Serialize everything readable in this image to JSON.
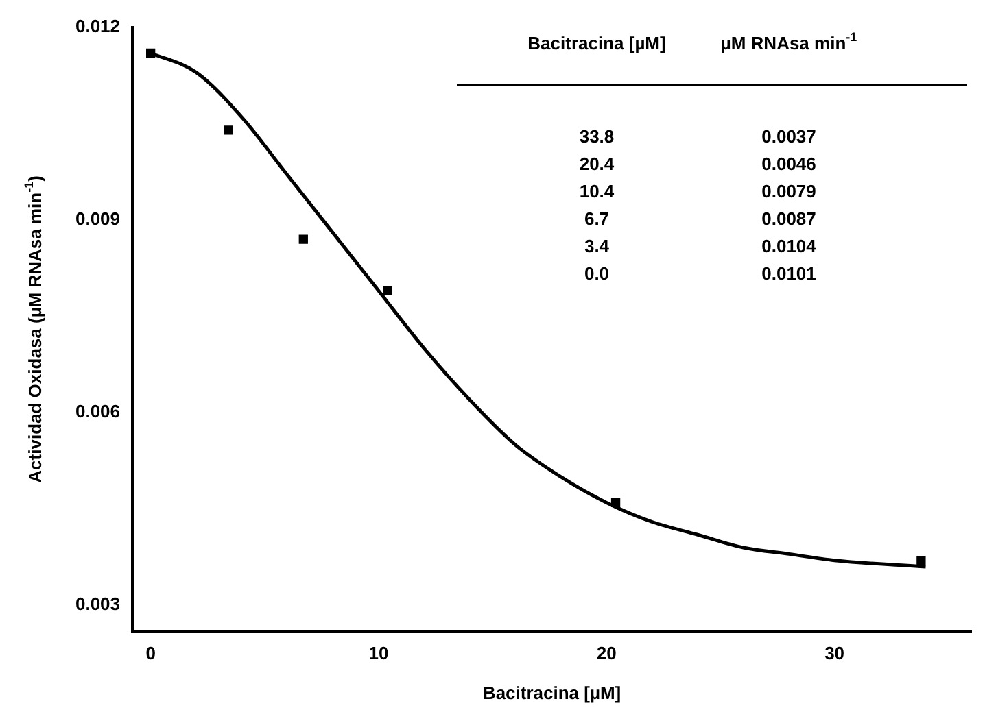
{
  "chart_data": {
    "type": "scatter",
    "xlabel": "Bacitracina [µM]",
    "ylabel": "Actividad Oxidasa (µM RNAsa min$^{-1}$)",
    "xlim": [
      -0.8,
      36
    ],
    "xticks": [
      0,
      10,
      20,
      30
    ],
    "ylim": [
      0.0026,
      0.012
    ],
    "yticks": [
      0.003,
      0.006,
      0.009,
      0.012
    ],
    "grid": false,
    "legend": false,
    "marker": "square",
    "series": [
      {
        "color": "#000000",
        "x": [
          0,
          3.4,
          6.7,
          10.4,
          20.4,
          33.8
        ],
        "values": [
          0.0116,
          0.0104,
          0.0087,
          0.0079,
          0.0046,
          0.0037
        ]
      },
      {
        "type": "line",
        "marker": "none",
        "line_style": "solid",
        "color": "#000000",
        "x": [
          0,
          2,
          4,
          6,
          8,
          10,
          12,
          14,
          16,
          18,
          20,
          22,
          24,
          26,
          28,
          30,
          34
        ],
        "values": [
          0.0116,
          0.0113,
          0.0106,
          0.0097,
          0.0088,
          0.0079,
          0.007,
          0.0062,
          0.0055,
          0.005,
          0.0046,
          0.0043,
          0.0041,
          0.0039,
          0.0038,
          0.0037,
          0.0036
        ]
      }
    ],
    "annotations": [
      "Bacitracina [µM]",
      "µM RNAsa min$^{-1}$",
      "33.8",
      "0.0037",
      "20.4",
      "0.0046",
      "10.4",
      "0.0079",
      "6.7",
      "0.0087",
      "3.4",
      "0.0104",
      "0.0",
      "0.0101"
    ]
  }
}
